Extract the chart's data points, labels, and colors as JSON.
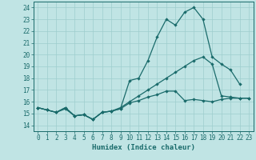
{
  "xlabel": "Humidex (Indice chaleur)",
  "xlim": [
    -0.5,
    23.5
  ],
  "ylim": [
    13.5,
    24.5
  ],
  "yticks": [
    14,
    15,
    16,
    17,
    18,
    19,
    20,
    21,
    22,
    23,
    24
  ],
  "xticks": [
    0,
    1,
    2,
    3,
    4,
    5,
    6,
    7,
    8,
    9,
    10,
    11,
    12,
    13,
    14,
    15,
    16,
    17,
    18,
    19,
    20,
    21,
    22,
    23
  ],
  "bg_color": "#c0e4e4",
  "grid_color": "#9ecece",
  "line_color": "#1a6b6b",
  "line1_x": [
    0,
    1,
    2,
    3,
    4,
    5,
    6,
    7,
    8,
    9,
    10,
    11,
    12,
    13,
    14,
    15,
    16,
    17,
    18,
    19,
    20,
    21,
    22
  ],
  "line1_y": [
    15.5,
    15.3,
    15.1,
    15.5,
    14.8,
    14.9,
    14.5,
    15.1,
    15.2,
    15.4,
    17.8,
    18.0,
    19.5,
    21.5,
    23.0,
    22.5,
    23.6,
    24.0,
    23.0,
    19.8,
    19.2,
    18.7,
    17.5
  ],
  "line2_x": [
    0,
    1,
    2,
    3,
    4,
    5,
    6,
    7,
    8,
    9,
    10,
    11,
    12,
    13,
    14,
    15,
    16,
    17,
    18,
    19,
    20,
    21,
    22,
    23
  ],
  "line2_y": [
    15.5,
    15.3,
    15.1,
    15.5,
    14.8,
    14.9,
    14.5,
    15.1,
    15.2,
    15.5,
    16.0,
    16.5,
    17.0,
    17.5,
    18.0,
    18.5,
    19.0,
    19.5,
    19.8,
    19.2,
    16.5,
    16.4,
    16.3,
    16.3
  ],
  "line3_x": [
    0,
    1,
    2,
    3,
    4,
    5,
    6,
    7,
    8,
    9,
    10,
    11,
    12,
    13,
    14,
    15,
    16,
    17,
    18,
    19,
    20,
    21,
    22,
    23
  ],
  "line3_y": [
    15.5,
    15.3,
    15.1,
    15.4,
    14.8,
    14.9,
    14.5,
    15.1,
    15.2,
    15.4,
    15.9,
    16.1,
    16.4,
    16.6,
    16.9,
    16.9,
    16.1,
    16.2,
    16.1,
    16.0,
    16.2,
    16.3,
    16.3,
    16.3
  ],
  "tick_fontsize": 5.5,
  "xlabel_fontsize": 6.5,
  "linewidth": 0.9,
  "markersize": 2.2
}
